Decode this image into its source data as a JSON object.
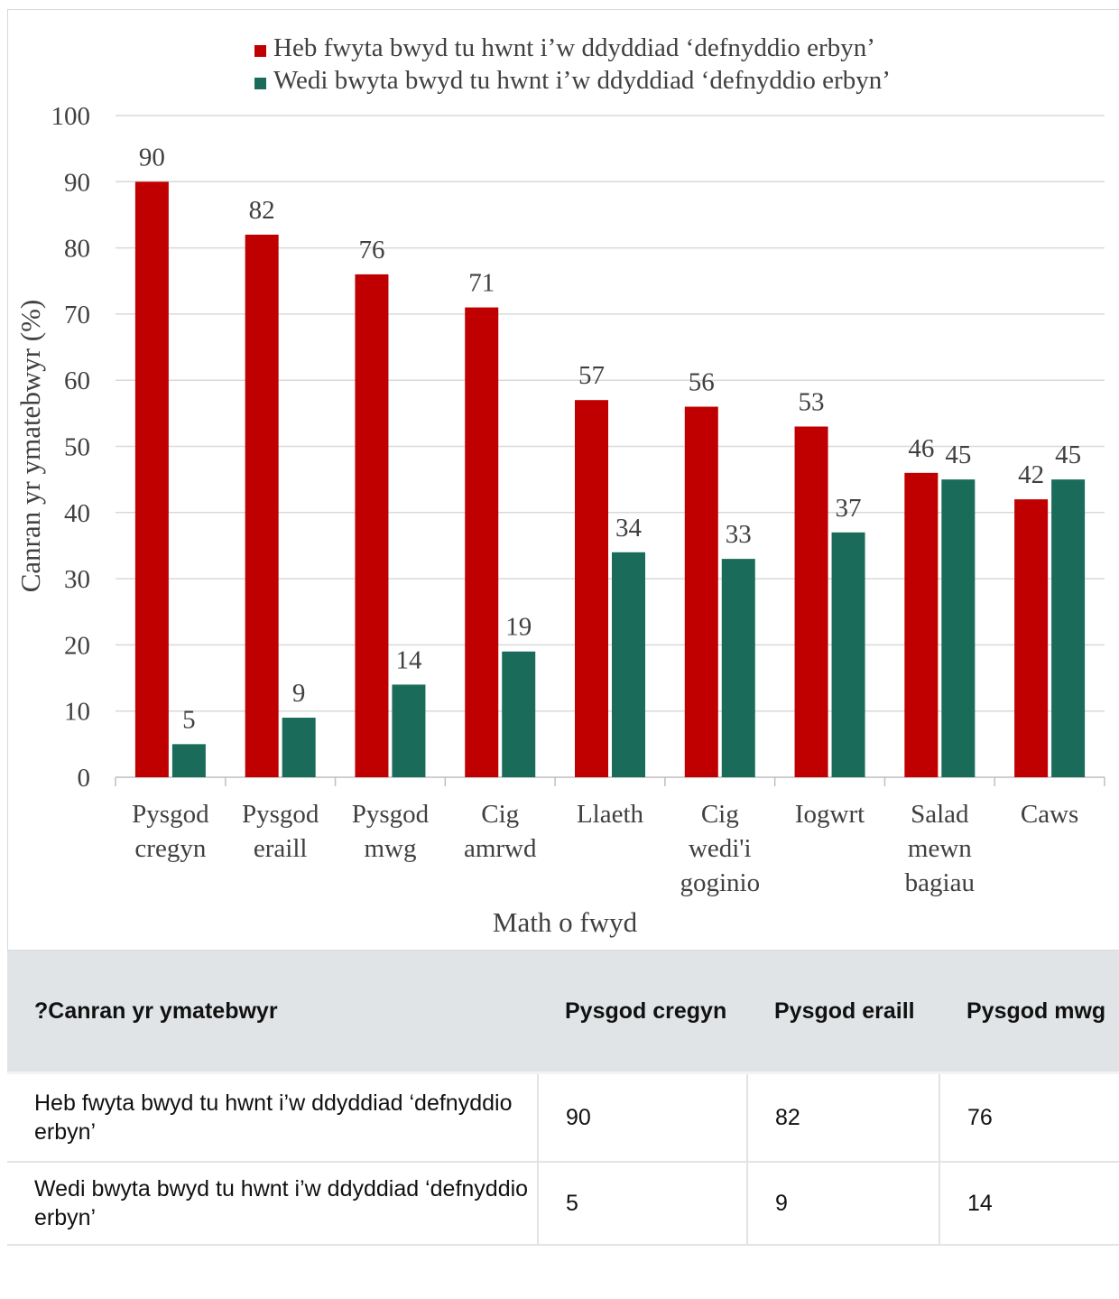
{
  "chart_data": {
    "type": "bar",
    "xlabel": "Math o fwyd",
    "ylabel": "Canran yr ymatebwyr (%)",
    "ylim": [
      0,
      100
    ],
    "yticks": [
      0,
      10,
      20,
      30,
      40,
      50,
      60,
      70,
      80,
      90,
      100
    ],
    "grid": true,
    "legend_position": "top",
    "categories": [
      [
        "Pysgod",
        "cregyn"
      ],
      [
        "Pysgod",
        "eraill"
      ],
      [
        "Pysgod",
        "mwg"
      ],
      [
        "Cig",
        "amrwd"
      ],
      [
        "Llaeth"
      ],
      [
        "Cig",
        "wedi'i",
        "goginio"
      ],
      [
        "Iogwrt"
      ],
      [
        "Salad",
        "mewn",
        "bagiau"
      ],
      [
        "Caws"
      ]
    ],
    "series": [
      {
        "name": "Heb fwyta bwyd tu hwnt i’w ddyddiad ‘defnyddio erbyn’",
        "color": "#c00000",
        "values": [
          90,
          82,
          76,
          71,
          57,
          56,
          53,
          46,
          42
        ]
      },
      {
        "name": "Wedi bwyta bwyd tu hwnt i’w ddyddiad ‘defnyddio erbyn’",
        "color": "#1b6b5a",
        "values": [
          5,
          9,
          14,
          19,
          34,
          33,
          37,
          45,
          45
        ]
      }
    ]
  },
  "table": {
    "header": [
      "?Canran yr ymatebwyr",
      "Pysgod cregyn",
      "Pysgod eraill",
      "Pysgod mwg"
    ],
    "rows": [
      [
        "Heb fwyta bwyd tu hwnt i’w ddyddiad ‘defnyddio erbyn’",
        "90",
        "82",
        "76"
      ],
      [
        "Wedi bwyta bwyd tu hwnt i’w ddyddiad ‘defnyddio erbyn’",
        "5",
        "9",
        "14"
      ]
    ]
  }
}
